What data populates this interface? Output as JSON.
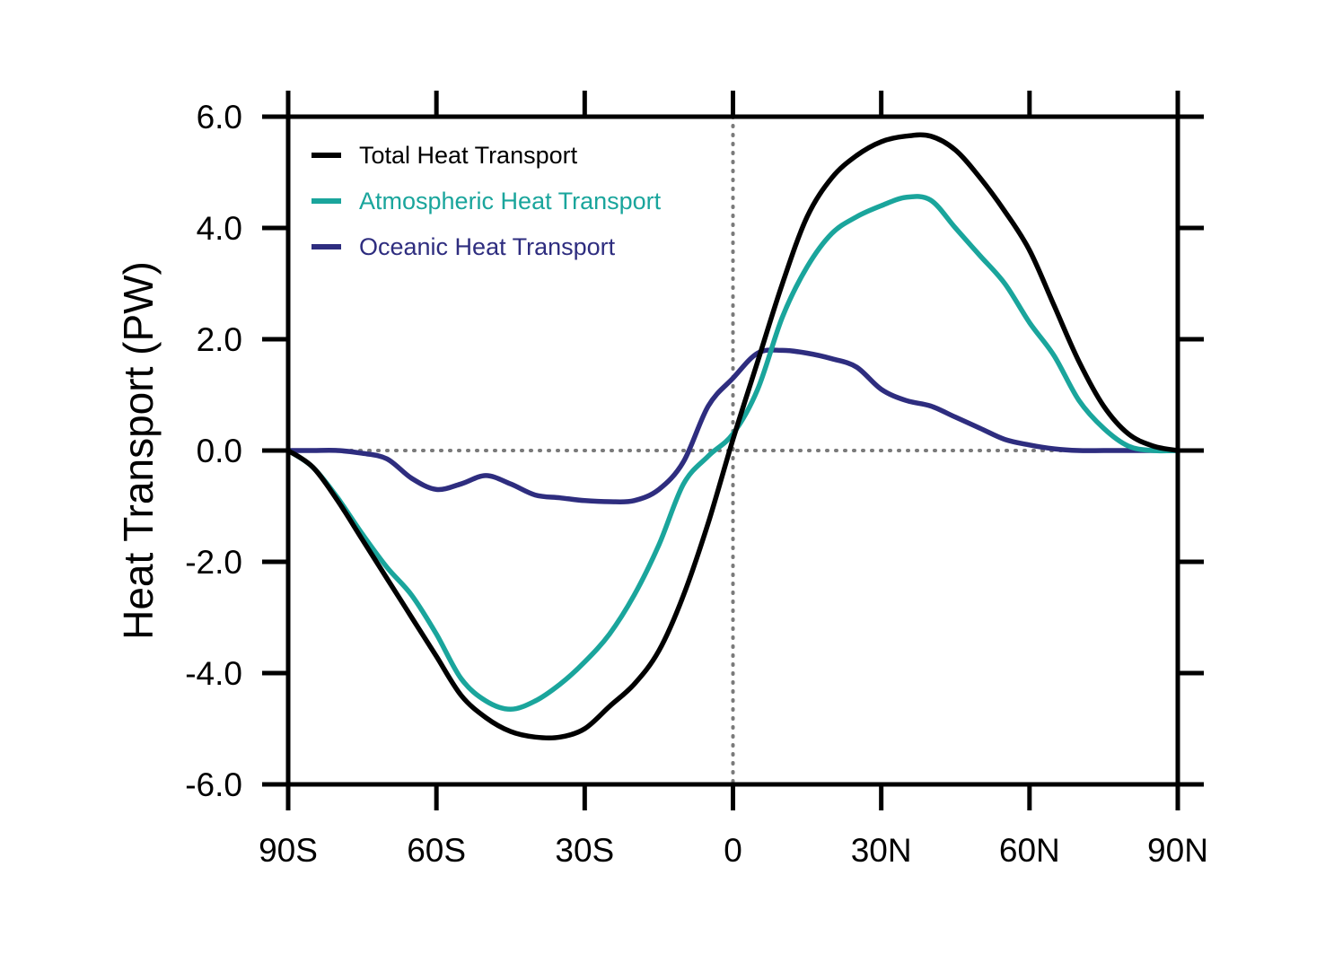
{
  "chart_data": {
    "type": "line",
    "title": "",
    "xlabel": "",
    "ylabel": "Heat Transport (PW)",
    "xlim": [
      -90,
      90
    ],
    "ylim": [
      -6,
      6
    ],
    "x_ticks": [
      {
        "value": -90,
        "label": "90S"
      },
      {
        "value": -60,
        "label": "60S"
      },
      {
        "value": -30,
        "label": "30S"
      },
      {
        "value": 0,
        "label": "0"
      },
      {
        "value": 30,
        "label": "30N"
      },
      {
        "value": 60,
        "label": "60N"
      },
      {
        "value": 90,
        "label": "90N"
      }
    ],
    "y_ticks": [
      {
        "value": 6,
        "label": "6.0"
      },
      {
        "value": 4,
        "label": "4.0"
      },
      {
        "value": 2,
        "label": "2.0"
      },
      {
        "value": 0,
        "label": "0.0"
      },
      {
        "value": -2,
        "label": "-2.0"
      },
      {
        "value": -4,
        "label": "-4.0"
      },
      {
        "value": -6,
        "label": "-6.0"
      }
    ],
    "reference_lines": [
      {
        "axis": "x",
        "value": 0,
        "style": "dotted",
        "color": "#7a7a7a"
      },
      {
        "axis": "y",
        "value": 0,
        "style": "dotted",
        "color": "#7a7a7a"
      }
    ],
    "grid": false,
    "legend_position": "top-left",
    "series": [
      {
        "name": "Total Heat Transport",
        "color": "#000000",
        "x": [
          -90,
          -85,
          -80,
          -75,
          -70,
          -65,
          -60,
          -55,
          -50,
          -45,
          -40,
          -35,
          -30,
          -25,
          -20,
          -15,
          -10,
          -5,
          0,
          5,
          10,
          15,
          20,
          25,
          30,
          35,
          40,
          45,
          50,
          55,
          60,
          65,
          70,
          75,
          80,
          85,
          90
        ],
        "values": [
          0.0,
          -0.3,
          -0.9,
          -1.6,
          -2.3,
          -3.0,
          -3.7,
          -4.4,
          -4.8,
          -5.05,
          -5.15,
          -5.15,
          -5.0,
          -4.6,
          -4.2,
          -3.6,
          -2.6,
          -1.3,
          0.2,
          1.6,
          3.0,
          4.2,
          4.9,
          5.3,
          5.55,
          5.65,
          5.65,
          5.4,
          4.9,
          4.3,
          3.6,
          2.6,
          1.6,
          0.8,
          0.3,
          0.08,
          0.0
        ]
      },
      {
        "name": "Atmospheric Heat Transport",
        "color": "#1aa59c",
        "x": [
          -90,
          -85,
          -80,
          -75,
          -70,
          -65,
          -60,
          -55,
          -50,
          -45,
          -40,
          -35,
          -30,
          -25,
          -20,
          -15,
          -10,
          -5,
          0,
          5,
          10,
          15,
          20,
          25,
          30,
          35,
          40,
          45,
          50,
          55,
          60,
          65,
          70,
          75,
          80,
          85,
          90
        ],
        "values": [
          0.0,
          -0.3,
          -0.85,
          -1.5,
          -2.1,
          -2.6,
          -3.3,
          -4.1,
          -4.5,
          -4.65,
          -4.5,
          -4.2,
          -3.8,
          -3.3,
          -2.6,
          -1.7,
          -0.6,
          -0.1,
          0.3,
          1.1,
          2.4,
          3.3,
          3.9,
          4.2,
          4.4,
          4.55,
          4.5,
          4.0,
          3.5,
          3.0,
          2.3,
          1.7,
          0.9,
          0.4,
          0.08,
          0.0,
          0.0
        ]
      },
      {
        "name": "Oceanic Heat Transport",
        "color": "#2e2d7f",
        "x": [
          -90,
          -85,
          -80,
          -75,
          -70,
          -65,
          -60,
          -55,
          -50,
          -45,
          -40,
          -35,
          -30,
          -25,
          -20,
          -15,
          -10,
          -5,
          0,
          5,
          10,
          15,
          20,
          25,
          30,
          35,
          40,
          45,
          50,
          55,
          60,
          65,
          70,
          75,
          80,
          85,
          90
        ],
        "values": [
          0.0,
          0.0,
          0.0,
          -0.05,
          -0.15,
          -0.5,
          -0.7,
          -0.6,
          -0.45,
          -0.6,
          -0.8,
          -0.85,
          -0.9,
          -0.92,
          -0.9,
          -0.7,
          -0.2,
          0.8,
          1.3,
          1.75,
          1.8,
          1.75,
          1.65,
          1.5,
          1.1,
          0.9,
          0.8,
          0.6,
          0.4,
          0.2,
          0.1,
          0.03,
          0.0,
          0.0,
          0.0,
          0.0,
          0.0
        ]
      }
    ]
  }
}
